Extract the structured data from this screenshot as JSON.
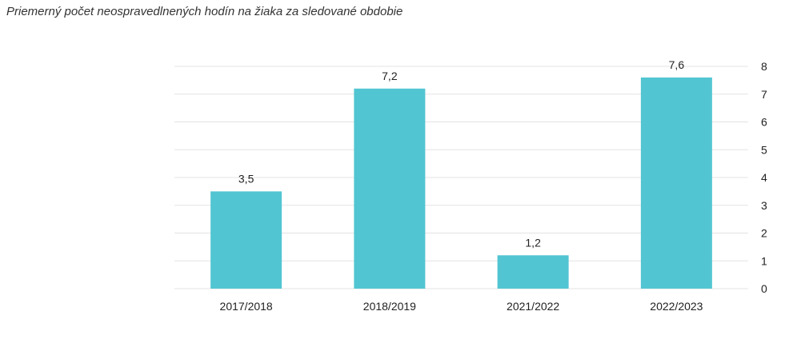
{
  "chart_data": {
    "type": "bar",
    "title": "Priemerný počet neospravedlnených hodín na žiaka za sledované obdobie",
    "categories": [
      "2017/2018",
      "2018/2019",
      "2021/2022",
      "2022/2023"
    ],
    "values": [
      3.5,
      7.2,
      1.2,
      7.6
    ],
    "data_labels": [
      "3,5",
      "7,2",
      "1,2",
      "7,6"
    ],
    "yticks": [
      "0",
      "1",
      "2",
      "3",
      "4",
      "5",
      "6",
      "7",
      "8"
    ],
    "ylim": [
      0,
      8
    ],
    "xlabel": "",
    "ylabel": "",
    "y_axis_side": "right",
    "grid": true,
    "bar_color": "#52c5d2",
    "grid_color": "#e3e3e3"
  }
}
